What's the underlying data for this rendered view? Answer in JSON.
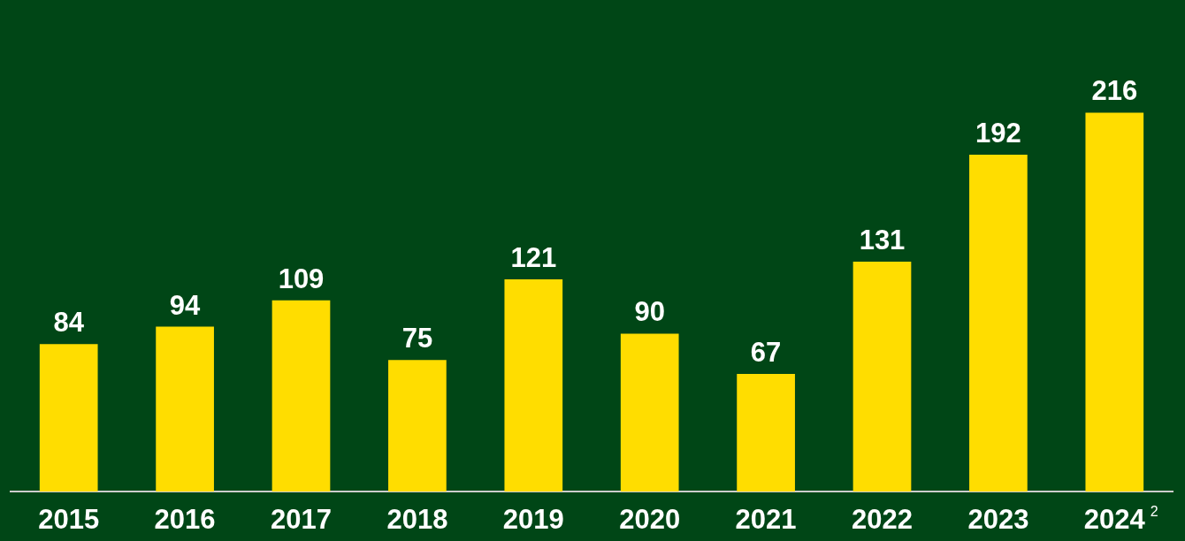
{
  "chart_data": {
    "type": "bar",
    "categories": [
      "2015",
      "2016",
      "2017",
      "2018",
      "2019",
      "2020",
      "2021",
      "2022",
      "2023",
      "2024$^{2}$"
    ],
    "values": [
      84,
      94,
      109,
      75,
      121,
      90,
      67,
      131,
      192,
      216
    ],
    "color": "#ffdd00",
    "data_labels": true,
    "grid": false,
    "legend": false
  }
}
